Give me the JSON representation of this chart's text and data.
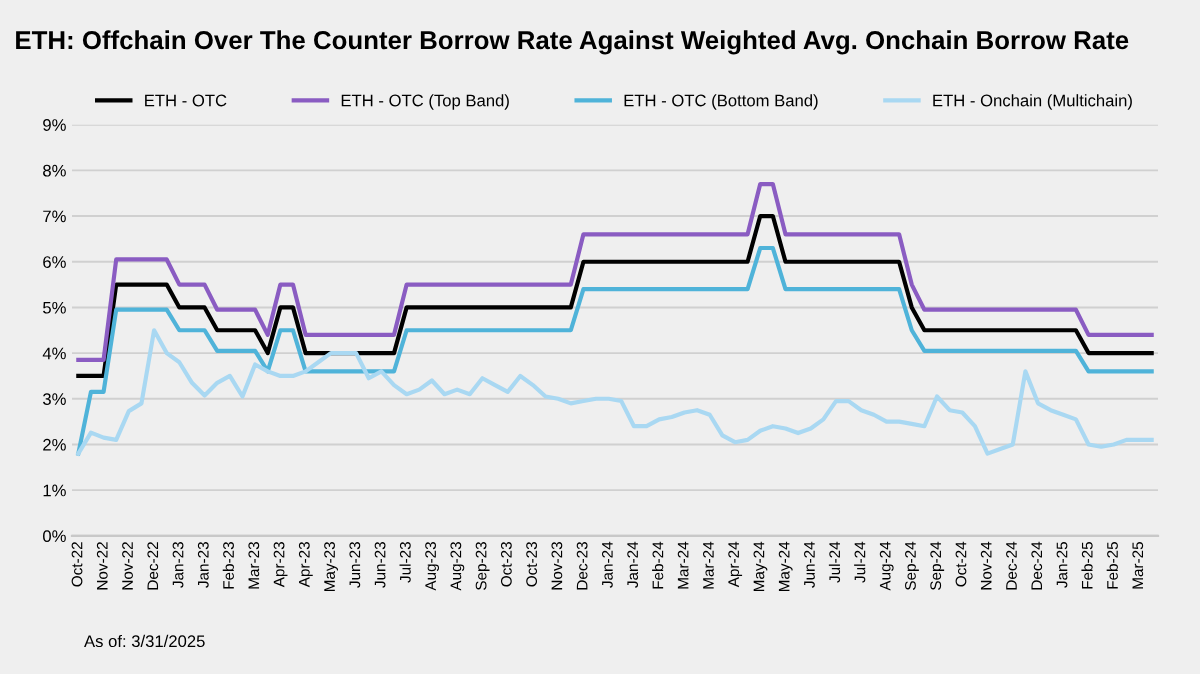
{
  "chart_data": {
    "type": "line",
    "title": "ETH: Offchain Over The Counter Borrow Rate Against Weighted Avg. Onchain Borrow Rate",
    "annotations": [
      "As of: 3/31/2025"
    ],
    "categories": [
      "Oct-22",
      null,
      "Nov-22",
      null,
      "Nov-22",
      null,
      "Dec-22",
      null,
      "Jan-23",
      null,
      "Jan-23",
      null,
      "Feb-23",
      null,
      "Mar-23",
      null,
      "Apr-23",
      null,
      "Apr-23",
      null,
      "May-23",
      null,
      "Jun-23",
      null,
      "Jun-23",
      null,
      "Jul-23",
      null,
      "Aug-23",
      null,
      "Aug-23",
      null,
      "Sep-23",
      null,
      "Oct-23",
      null,
      "Oct-23",
      null,
      "Nov-23",
      null,
      "Dec-23",
      null,
      "Jan-24",
      null,
      "Jan-24",
      null,
      "Feb-24",
      null,
      "Mar-24",
      null,
      "Mar-24",
      null,
      "Apr-24",
      null,
      "May-24",
      null,
      "May-24",
      null,
      "Jun-24",
      null,
      "Jul-24",
      null,
      "Jul-24",
      null,
      "Aug-24",
      null,
      "Sep-24",
      null,
      "Sep-24",
      null,
      "Oct-24",
      null,
      "Nov-24",
      null,
      "Dec-24",
      null,
      "Dec-24",
      null,
      "Jan-25",
      null,
      "Feb-25",
      null,
      "Feb-25",
      null,
      "Mar-25",
      null
    ],
    "series": [
      {
        "name": "ETH - OTC",
        "color": "#000000",
        "values": [
          3.5,
          3.5,
          3.5,
          5.5,
          5.5,
          5.5,
          5.5,
          5.5,
          5.0,
          5.0,
          5.0,
          4.5,
          4.5,
          4.5,
          4.5,
          4.0,
          5.0,
          5.0,
          4.0,
          4.0,
          4.0,
          4.0,
          4.0,
          4.0,
          4.0,
          4.0,
          5.0,
          5.0,
          5.0,
          5.0,
          5.0,
          5.0,
          5.0,
          5.0,
          5.0,
          5.0,
          5.0,
          5.0,
          5.0,
          5.0,
          6.0,
          6.0,
          6.0,
          6.0,
          6.0,
          6.0,
          6.0,
          6.0,
          6.0,
          6.0,
          6.0,
          6.0,
          6.0,
          6.0,
          7.0,
          7.0,
          6.0,
          6.0,
          6.0,
          6.0,
          6.0,
          6.0,
          6.0,
          6.0,
          6.0,
          6.0,
          5.0,
          4.5,
          4.5,
          4.5,
          4.5,
          4.5,
          4.5,
          4.5,
          4.5,
          4.5,
          4.5,
          4.5,
          4.5,
          4.5,
          4.0,
          4.0,
          4.0,
          4.0,
          4.0,
          4.0
        ]
      },
      {
        "name": "ETH - OTC (Top Band)",
        "color": "#8a5cc2",
        "values": [
          3.85,
          3.85,
          3.85,
          6.05,
          6.05,
          6.05,
          6.05,
          6.05,
          5.5,
          5.5,
          5.5,
          4.95,
          4.95,
          4.95,
          4.95,
          4.4,
          5.5,
          5.5,
          4.4,
          4.4,
          4.4,
          4.4,
          4.4,
          4.4,
          4.4,
          4.4,
          5.5,
          5.5,
          5.5,
          5.5,
          5.5,
          5.5,
          5.5,
          5.5,
          5.5,
          5.5,
          5.5,
          5.5,
          5.5,
          5.5,
          6.6,
          6.6,
          6.6,
          6.6,
          6.6,
          6.6,
          6.6,
          6.6,
          6.6,
          6.6,
          6.6,
          6.6,
          6.6,
          6.6,
          7.7,
          7.7,
          6.6,
          6.6,
          6.6,
          6.6,
          6.6,
          6.6,
          6.6,
          6.6,
          6.6,
          6.6,
          5.5,
          4.95,
          4.95,
          4.95,
          4.95,
          4.95,
          4.95,
          4.95,
          4.95,
          4.95,
          4.95,
          4.95,
          4.95,
          4.95,
          4.4,
          4.4,
          4.4,
          4.4,
          4.4,
          4.4
        ]
      },
      {
        "name": "ETH - OTC (Bottom Band)",
        "color": "#4fb3d9",
        "values": [
          1.8,
          3.15,
          3.15,
          4.95,
          4.95,
          4.95,
          4.95,
          4.95,
          4.5,
          4.5,
          4.5,
          4.05,
          4.05,
          4.05,
          4.05,
          3.6,
          4.5,
          4.5,
          3.6,
          3.6,
          3.6,
          3.6,
          3.6,
          3.6,
          3.6,
          3.6,
          4.5,
          4.5,
          4.5,
          4.5,
          4.5,
          4.5,
          4.5,
          4.5,
          4.5,
          4.5,
          4.5,
          4.5,
          4.5,
          4.5,
          5.4,
          5.4,
          5.4,
          5.4,
          5.4,
          5.4,
          5.4,
          5.4,
          5.4,
          5.4,
          5.4,
          5.4,
          5.4,
          5.4,
          6.3,
          6.3,
          5.4,
          5.4,
          5.4,
          5.4,
          5.4,
          5.4,
          5.4,
          5.4,
          5.4,
          5.4,
          4.5,
          4.05,
          4.05,
          4.05,
          4.05,
          4.05,
          4.05,
          4.05,
          4.05,
          4.05,
          4.05,
          4.05,
          4.05,
          4.05,
          3.6,
          3.6,
          3.6,
          3.6,
          3.6,
          3.6
        ]
      },
      {
        "name": "ETH - Onchain (Multichain)",
        "color": "#a9d8f2",
        "values": [
          1.8,
          2.26,
          2.15,
          2.1,
          2.73,
          2.9,
          4.5,
          4.0,
          3.8,
          3.35,
          3.07,
          3.35,
          3.5,
          3.05,
          3.75,
          3.6,
          3.5,
          3.5,
          3.6,
          3.8,
          4.0,
          4.0,
          4.0,
          3.45,
          3.6,
          3.3,
          3.1,
          3.2,
          3.4,
          3.1,
          3.2,
          3.1,
          3.45,
          3.3,
          3.15,
          3.5,
          3.3,
          3.05,
          3.0,
          2.9,
          2.95,
          3.0,
          3.0,
          2.95,
          2.4,
          2.4,
          2.55,
          2.6,
          2.7,
          2.75,
          2.65,
          2.2,
          2.05,
          2.1,
          2.3,
          2.4,
          2.35,
          2.25,
          2.35,
          2.55,
          2.95,
          2.95,
          2.75,
          2.65,
          2.5,
          2.5,
          2.45,
          2.4,
          3.05,
          2.75,
          2.7,
          2.4,
          1.8,
          1.9,
          2.0,
          3.6,
          2.9,
          2.75,
          2.65,
          2.55,
          2.0,
          1.95,
          2.0,
          2.1,
          2.1,
          2.1
        ]
      }
    ],
    "ylim": [
      0,
      9
    ],
    "yticks": [
      {
        "value": 0,
        "label": "0%"
      },
      {
        "value": 1,
        "label": "1%"
      },
      {
        "value": 2,
        "label": "2%"
      },
      {
        "value": 3,
        "label": "3%"
      },
      {
        "value": 4,
        "label": "4%"
      },
      {
        "value": 5,
        "label": "5%"
      },
      {
        "value": 6,
        "label": "6%"
      },
      {
        "value": 7,
        "label": "7%"
      },
      {
        "value": 8,
        "label": "8%"
      },
      {
        "value": 9,
        "label": "9%"
      }
    ],
    "grid": "y",
    "legend": "top",
    "marker": "none",
    "line_style": "solid"
  }
}
